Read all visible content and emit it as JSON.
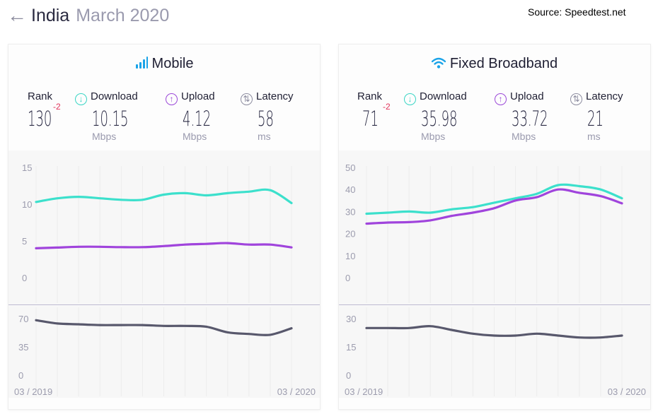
{
  "header": {
    "back_icon": "arrow-left-icon",
    "country": "India",
    "period": "March 2020"
  },
  "source": "Source: Speedtest.net",
  "colors": {
    "download": "#3ce0cc",
    "upload": "#a044dc",
    "latency": "#58586c",
    "rank_change": "#e0335a"
  },
  "panels": [
    {
      "title": "Mobile",
      "icon": "signal-bars-icon",
      "rank_label": "Rank",
      "rank": "130",
      "rank_change": "-2",
      "download_label": "Download",
      "download": "10.15",
      "download_unit": "Mbps",
      "upload_label": "Upload",
      "upload": "4.12",
      "upload_unit": "Mbps",
      "latency_label": "Latency",
      "latency": "58",
      "latency_unit": "ms",
      "x_start": "03 / 2019",
      "x_end": "03 / 2020"
    },
    {
      "title": "Fixed Broadband",
      "icon": "wifi-icon",
      "rank_label": "Rank",
      "rank": "71",
      "rank_change": "-2",
      "download_label": "Download",
      "download": "35.98",
      "download_unit": "Mbps",
      "upload_label": "Upload",
      "upload": "33.72",
      "upload_unit": "Mbps",
      "latency_label": "Latency",
      "latency": "21",
      "latency_unit": "ms",
      "x_start": "03 / 2019",
      "x_end": "03 / 2020"
    }
  ],
  "chart_data": [
    {
      "type": "line",
      "x": [
        "03/2019",
        "04/2019",
        "05/2019",
        "06/2019",
        "07/2019",
        "08/2019",
        "09/2019",
        "10/2019",
        "11/2019",
        "12/2019",
        "01/2020",
        "02/2020",
        "03/2020"
      ],
      "yticks": [
        0,
        5,
        10,
        15
      ],
      "ylim": [
        0,
        15
      ],
      "series": [
        {
          "key": "download",
          "values": [
            10.3,
            10.8,
            11.0,
            10.8,
            10.6,
            10.6,
            11.3,
            11.5,
            11.2,
            11.5,
            11.7,
            11.9,
            10.15
          ]
        },
        {
          "key": "upload",
          "values": [
            4.0,
            4.1,
            4.2,
            4.2,
            4.15,
            4.15,
            4.3,
            4.5,
            4.6,
            4.7,
            4.5,
            4.5,
            4.12
          ]
        }
      ]
    },
    {
      "type": "line",
      "x": [
        "03/2019",
        "04/2019",
        "05/2019",
        "06/2019",
        "07/2019",
        "08/2019",
        "09/2019",
        "10/2019",
        "11/2019",
        "12/2019",
        "01/2020",
        "02/2020",
        "03/2020"
      ],
      "yticks": [
        0,
        35,
        70
      ],
      "ylim": [
        0,
        70
      ],
      "series": [
        {
          "key": "latency",
          "values": [
            68,
            64,
            63,
            62,
            62,
            62,
            61,
            61,
            60,
            53,
            51,
            50,
            58
          ]
        }
      ]
    },
    {
      "type": "line",
      "x": [
        "03/2019",
        "04/2019",
        "05/2019",
        "06/2019",
        "07/2019",
        "08/2019",
        "09/2019",
        "10/2019",
        "11/2019",
        "12/2019",
        "01/2020",
        "02/2020",
        "03/2020"
      ],
      "yticks": [
        0,
        10,
        20,
        30,
        40,
        50
      ],
      "ylim": [
        0,
        50
      ],
      "series": [
        {
          "key": "download",
          "values": [
            29.0,
            29.5,
            30.0,
            29.5,
            31.0,
            32.0,
            34.0,
            36.0,
            38.0,
            42.0,
            41.5,
            40.0,
            35.98
          ]
        },
        {
          "key": "upload",
          "values": [
            24.5,
            25.0,
            25.2,
            26.0,
            28.0,
            29.5,
            31.5,
            35.0,
            36.5,
            40.0,
            38.5,
            37.0,
            33.72
          ]
        }
      ]
    },
    {
      "type": "line",
      "x": [
        "03/2019",
        "04/2019",
        "05/2019",
        "06/2019",
        "07/2019",
        "08/2019",
        "09/2019",
        "10/2019",
        "11/2019",
        "12/2019",
        "01/2020",
        "02/2020",
        "03/2020"
      ],
      "yticks": [
        0,
        15,
        30
      ],
      "ylim": [
        0,
        30
      ],
      "series": [
        {
          "key": "latency",
          "values": [
            25,
            25,
            25,
            26,
            24,
            22,
            21,
            21,
            22,
            21,
            20,
            20,
            21
          ]
        }
      ]
    }
  ]
}
